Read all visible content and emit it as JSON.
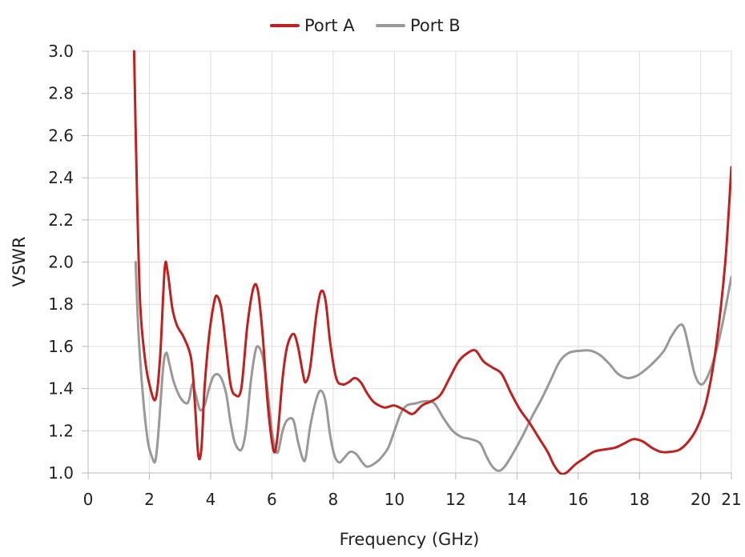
{
  "chart_data": {
    "type": "line",
    "title": "",
    "xlabel": "Frequency (GHz)",
    "ylabel": "VSWR",
    "xlim": [
      0,
      21
    ],
    "ylim": [
      1.0,
      3.0
    ],
    "x_ticks": [
      "0",
      "2",
      "4",
      "6",
      "8",
      "10",
      "12",
      "14",
      "16",
      "18",
      "20",
      "21"
    ],
    "x_tick_values": [
      0,
      2,
      4,
      6,
      8,
      10,
      12,
      14,
      16,
      18,
      20,
      21
    ],
    "y_ticks": [
      "1.0",
      "1.2",
      "1.4",
      "1.6",
      "1.8",
      "2.0",
      "2.2",
      "2.4",
      "2.6",
      "2.8",
      "3.0"
    ],
    "y_tick_values": [
      1.0,
      1.2,
      1.4,
      1.6,
      1.8,
      2.0,
      2.2,
      2.4,
      2.6,
      2.8,
      3.0
    ],
    "grid": true,
    "legend": "top-center",
    "series": [
      {
        "name": "Port A",
        "color": "#c0201e",
        "points": [
          [
            1.5,
            3.0
          ],
          [
            1.6,
            2.3
          ],
          [
            1.7,
            1.8
          ],
          [
            1.85,
            1.55
          ],
          [
            2.0,
            1.42
          ],
          [
            2.2,
            1.35
          ],
          [
            2.35,
            1.55
          ],
          [
            2.5,
            1.97
          ],
          [
            2.6,
            1.95
          ],
          [
            2.75,
            1.78
          ],
          [
            2.9,
            1.7
          ],
          [
            3.1,
            1.65
          ],
          [
            3.3,
            1.58
          ],
          [
            3.4,
            1.5
          ],
          [
            3.5,
            1.3
          ],
          [
            3.6,
            1.08
          ],
          [
            3.7,
            1.12
          ],
          [
            3.8,
            1.4
          ],
          [
            3.95,
            1.65
          ],
          [
            4.1,
            1.8
          ],
          [
            4.2,
            1.84
          ],
          [
            4.35,
            1.78
          ],
          [
            4.5,
            1.6
          ],
          [
            4.65,
            1.42
          ],
          [
            4.8,
            1.37
          ],
          [
            5.0,
            1.4
          ],
          [
            5.2,
            1.7
          ],
          [
            5.4,
            1.88
          ],
          [
            5.55,
            1.86
          ],
          [
            5.7,
            1.65
          ],
          [
            5.85,
            1.35
          ],
          [
            6.0,
            1.15
          ],
          [
            6.1,
            1.1
          ],
          [
            6.2,
            1.2
          ],
          [
            6.35,
            1.45
          ],
          [
            6.5,
            1.6
          ],
          [
            6.7,
            1.66
          ],
          [
            6.85,
            1.6
          ],
          [
            7.0,
            1.48
          ],
          [
            7.1,
            1.43
          ],
          [
            7.25,
            1.5
          ],
          [
            7.45,
            1.75
          ],
          [
            7.6,
            1.86
          ],
          [
            7.75,
            1.82
          ],
          [
            7.9,
            1.62
          ],
          [
            8.1,
            1.45
          ],
          [
            8.3,
            1.42
          ],
          [
            8.5,
            1.43
          ],
          [
            8.7,
            1.45
          ],
          [
            8.9,
            1.43
          ],
          [
            9.1,
            1.38
          ],
          [
            9.3,
            1.34
          ],
          [
            9.5,
            1.32
          ],
          [
            9.7,
            1.31
          ],
          [
            10.0,
            1.32
          ],
          [
            10.3,
            1.3
          ],
          [
            10.6,
            1.28
          ],
          [
            10.9,
            1.32
          ],
          [
            11.2,
            1.34
          ],
          [
            11.5,
            1.37
          ],
          [
            11.8,
            1.45
          ],
          [
            12.1,
            1.53
          ],
          [
            12.4,
            1.57
          ],
          [
            12.65,
            1.58
          ],
          [
            12.9,
            1.53
          ],
          [
            13.2,
            1.5
          ],
          [
            13.5,
            1.47
          ],
          [
            13.8,
            1.38
          ],
          [
            14.1,
            1.3
          ],
          [
            14.4,
            1.24
          ],
          [
            14.7,
            1.17
          ],
          [
            15.0,
            1.1
          ],
          [
            15.2,
            1.04
          ],
          [
            15.4,
            1.0
          ],
          [
            15.6,
            1.0
          ],
          [
            15.9,
            1.04
          ],
          [
            16.2,
            1.07
          ],
          [
            16.5,
            1.1
          ],
          [
            16.8,
            1.11
          ],
          [
            17.2,
            1.12
          ],
          [
            17.5,
            1.14
          ],
          [
            17.8,
            1.16
          ],
          [
            18.1,
            1.15
          ],
          [
            18.4,
            1.12
          ],
          [
            18.7,
            1.1
          ],
          [
            19.0,
            1.1
          ],
          [
            19.3,
            1.11
          ],
          [
            19.6,
            1.15
          ],
          [
            19.9,
            1.22
          ],
          [
            20.2,
            1.35
          ],
          [
            20.5,
            1.6
          ],
          [
            20.8,
            2.0
          ],
          [
            21.0,
            2.45
          ]
        ]
      },
      {
        "name": "Port B",
        "color": "#999999",
        "points": [
          [
            1.55,
            2.0
          ],
          [
            1.65,
            1.65
          ],
          [
            1.8,
            1.35
          ],
          [
            1.95,
            1.15
          ],
          [
            2.1,
            1.07
          ],
          [
            2.2,
            1.06
          ],
          [
            2.3,
            1.2
          ],
          [
            2.45,
            1.5
          ],
          [
            2.55,
            1.57
          ],
          [
            2.65,
            1.52
          ],
          [
            2.8,
            1.43
          ],
          [
            3.0,
            1.36
          ],
          [
            3.2,
            1.33
          ],
          [
            3.3,
            1.35
          ],
          [
            3.4,
            1.42
          ],
          [
            3.5,
            1.38
          ],
          [
            3.65,
            1.3
          ],
          [
            3.8,
            1.32
          ],
          [
            3.95,
            1.4
          ],
          [
            4.1,
            1.46
          ],
          [
            4.3,
            1.46
          ],
          [
            4.5,
            1.38
          ],
          [
            4.65,
            1.24
          ],
          [
            4.8,
            1.14
          ],
          [
            5.0,
            1.11
          ],
          [
            5.15,
            1.2
          ],
          [
            5.3,
            1.42
          ],
          [
            5.45,
            1.57
          ],
          [
            5.55,
            1.6
          ],
          [
            5.7,
            1.55
          ],
          [
            5.85,
            1.4
          ],
          [
            6.0,
            1.2
          ],
          [
            6.1,
            1.12
          ],
          [
            6.2,
            1.1
          ],
          [
            6.35,
            1.2
          ],
          [
            6.5,
            1.25
          ],
          [
            6.7,
            1.25
          ],
          [
            6.85,
            1.15
          ],
          [
            7.0,
            1.07
          ],
          [
            7.1,
            1.07
          ],
          [
            7.25,
            1.22
          ],
          [
            7.45,
            1.35
          ],
          [
            7.6,
            1.39
          ],
          [
            7.75,
            1.34
          ],
          [
            7.9,
            1.18
          ],
          [
            8.05,
            1.08
          ],
          [
            8.2,
            1.05
          ],
          [
            8.35,
            1.07
          ],
          [
            8.55,
            1.1
          ],
          [
            8.75,
            1.09
          ],
          [
            8.95,
            1.05
          ],
          [
            9.1,
            1.03
          ],
          [
            9.3,
            1.04
          ],
          [
            9.55,
            1.07
          ],
          [
            9.8,
            1.12
          ],
          [
            10.0,
            1.2
          ],
          [
            10.2,
            1.28
          ],
          [
            10.4,
            1.32
          ],
          [
            10.7,
            1.33
          ],
          [
            11.0,
            1.34
          ],
          [
            11.3,
            1.33
          ],
          [
            11.6,
            1.26
          ],
          [
            11.9,
            1.2
          ],
          [
            12.2,
            1.17
          ],
          [
            12.5,
            1.16
          ],
          [
            12.8,
            1.14
          ],
          [
            13.0,
            1.08
          ],
          [
            13.2,
            1.03
          ],
          [
            13.4,
            1.01
          ],
          [
            13.6,
            1.03
          ],
          [
            13.9,
            1.1
          ],
          [
            14.2,
            1.18
          ],
          [
            14.5,
            1.27
          ],
          [
            14.8,
            1.35
          ],
          [
            15.1,
            1.44
          ],
          [
            15.4,
            1.53
          ],
          [
            15.7,
            1.57
          ],
          [
            16.1,
            1.58
          ],
          [
            16.4,
            1.58
          ],
          [
            16.7,
            1.56
          ],
          [
            17.0,
            1.52
          ],
          [
            17.3,
            1.47
          ],
          [
            17.6,
            1.45
          ],
          [
            17.9,
            1.46
          ],
          [
            18.2,
            1.49
          ],
          [
            18.5,
            1.53
          ],
          [
            18.8,
            1.58
          ],
          [
            19.05,
            1.65
          ],
          [
            19.3,
            1.7
          ],
          [
            19.45,
            1.69
          ],
          [
            19.6,
            1.6
          ],
          [
            19.8,
            1.47
          ],
          [
            20.0,
            1.42
          ],
          [
            20.2,
            1.45
          ],
          [
            20.45,
            1.55
          ],
          [
            20.7,
            1.7
          ],
          [
            21.0,
            1.93
          ]
        ]
      }
    ]
  }
}
